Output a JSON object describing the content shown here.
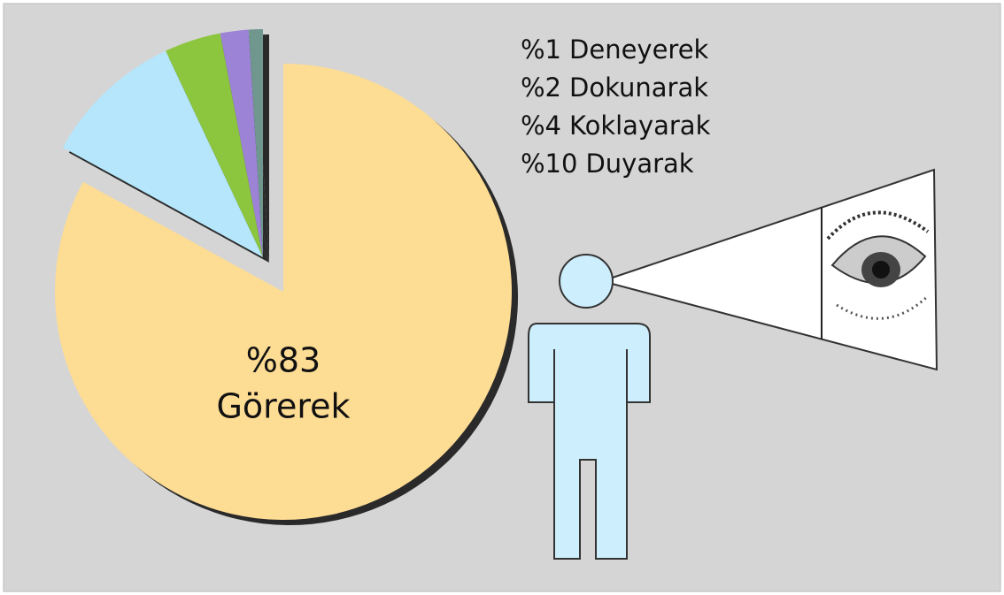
{
  "chart_data": {
    "type": "pie",
    "categories": [
      "Görerek",
      "Duyarak",
      "Koklayarak",
      "Dokunarak",
      "Deneyerek"
    ],
    "values": [
      83,
      10,
      4,
      2,
      1
    ],
    "value_labels": [
      "%83",
      "%10",
      "%4",
      "%2",
      "%1"
    ],
    "colors": [
      "#fddc94",
      "#b5e6fb",
      "#8cc63e",
      "#9d83d6",
      "#6f978d"
    ]
  }
}
